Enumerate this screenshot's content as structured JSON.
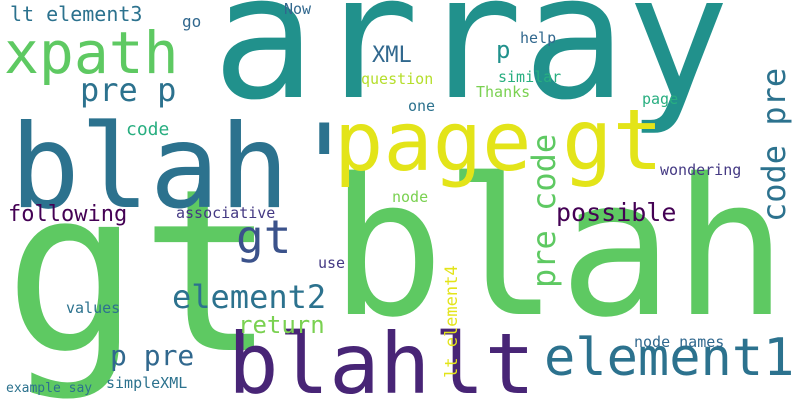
{
  "colors": {
    "background": "#ffffff",
    "teal": "#21918c",
    "blue_teal": "#2c728e",
    "deep_blue": "#31688e",
    "slate_blue": "#3b528b",
    "indigo": "#443983",
    "purple": "#482576",
    "dark_purple": "#440154",
    "sea_green": "#28ae80",
    "green": "#5ec962",
    "light_green": "#7ad151",
    "yellow": "#e3e419",
    "lime": "#b5de2b"
  },
  "words": [
    {
      "text": "array",
      "color": "#21918c"
    },
    {
      "text": "blah",
      "color": "#5ec962"
    },
    {
      "text": "gt",
      "color": "#5ec962"
    },
    {
      "text": "blah'",
      "color": "#2c728e"
    },
    {
      "text": "page",
      "color": "#e3e419"
    },
    {
      "text": "gt",
      "color": "#e3e419"
    },
    {
      "text": "xpath",
      "color": "#5ec962"
    },
    {
      "text": "blah",
      "color": "#482576"
    },
    {
      "text": "lt",
      "color": "#482576"
    },
    {
      "text": "element1",
      "color": "#2c728e"
    },
    {
      "text": "code pre",
      "color": "#2c728e"
    },
    {
      "text": "pre code",
      "color": "#5ec962"
    },
    {
      "text": "gt",
      "color": "#3b528b"
    },
    {
      "text": "element2",
      "color": "#2c728e"
    },
    {
      "text": "pre p",
      "color": "#2c728e"
    },
    {
      "text": "lt element3",
      "color": "#2c728e"
    },
    {
      "text": "possible",
      "color": "#440154"
    },
    {
      "text": "following",
      "color": "#440154"
    },
    {
      "text": "p pre",
      "color": "#31688e"
    },
    {
      "text": "return",
      "color": "#7ad151"
    },
    {
      "text": "lt element4",
      "color": "#e3e419"
    },
    {
      "text": "code",
      "color": "#28ae80"
    },
    {
      "text": "XML",
      "color": "#31688e"
    },
    {
      "text": "p",
      "color": "#21918c"
    },
    {
      "text": "associative",
      "color": "#443983"
    },
    {
      "text": "go",
      "color": "#31688e"
    },
    {
      "text": "Now",
      "color": "#31688e"
    },
    {
      "text": "help",
      "color": "#31688e"
    },
    {
      "text": "question",
      "color": "#b5de2b"
    },
    {
      "text": "similar",
      "color": "#28ae80"
    },
    {
      "text": "one",
      "color": "#2c728e"
    },
    {
      "text": "Thanks",
      "color": "#7ad151"
    },
    {
      "text": "page",
      "color": "#28ae80"
    },
    {
      "text": "wondering",
      "color": "#443983"
    },
    {
      "text": "node",
      "color": "#7ad151"
    },
    {
      "text": "use",
      "color": "#443983"
    },
    {
      "text": "values",
      "color": "#2c728e"
    },
    {
      "text": "node names",
      "color": "#31688e"
    },
    {
      "text": "example say",
      "color": "#2c728e"
    },
    {
      "text": "simpleXML",
      "color": "#2c728e"
    }
  ]
}
